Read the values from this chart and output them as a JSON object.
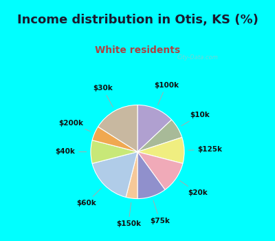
{
  "title": "Income distribution in Otis, KS (%)",
  "subtitle": "White residents",
  "bg_cyan": "#00ffff",
  "title_color": "#1a1a2e",
  "subtitle_color": "#aa4444",
  "labels": [
    "$100k",
    "$10k",
    "$125k",
    "$20k",
    "$75k",
    "$150k",
    "$60k",
    "$40k",
    "$200k",
    "$30k"
  ],
  "sizes": [
    13,
    7,
    9,
    11,
    10,
    4,
    17,
    8,
    5,
    16
  ],
  "colors": [
    "#b0a0d0",
    "#a8ba98",
    "#f0ee80",
    "#f0aab8",
    "#9090cc",
    "#f5c898",
    "#b0cce8",
    "#c8e878",
    "#f0a850",
    "#c8b8a0"
  ],
  "title_fontsize": 13,
  "subtitle_fontsize": 10,
  "label_fontsize": 7.5
}
